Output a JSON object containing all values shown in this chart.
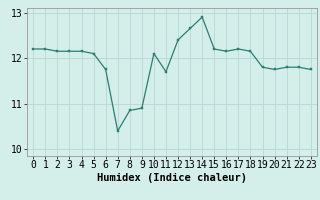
{
  "x": [
    0,
    1,
    2,
    3,
    4,
    5,
    6,
    7,
    8,
    9,
    10,
    11,
    12,
    13,
    14,
    15,
    16,
    17,
    18,
    19,
    20,
    21,
    22,
    23
  ],
  "y": [
    12.2,
    12.2,
    12.15,
    12.15,
    12.15,
    12.1,
    11.75,
    10.4,
    10.85,
    10.9,
    12.1,
    11.7,
    12.4,
    12.65,
    12.9,
    12.2,
    12.15,
    12.2,
    12.15,
    11.8,
    11.75,
    11.8,
    11.8,
    11.75
  ],
  "line_color": "#2a7f6f",
  "marker_color": "#2a7f6f",
  "bg_color": "#d4eeea",
  "grid_color": "#b8d8d4",
  "xlabel": "Humidex (Indice chaleur)",
  "ylim": [
    9.85,
    13.1
  ],
  "xlim": [
    -0.5,
    23.5
  ],
  "yticks": [
    10,
    11,
    12,
    13
  ],
  "xticks": [
    0,
    1,
    2,
    3,
    4,
    5,
    6,
    7,
    8,
    9,
    10,
    11,
    12,
    13,
    14,
    15,
    16,
    17,
    18,
    19,
    20,
    21,
    22,
    23
  ],
  "xtick_labels": [
    "0",
    "1",
    "2",
    "3",
    "4",
    "5",
    "6",
    "7",
    "8",
    "9",
    "10",
    "11",
    "12",
    "13",
    "14",
    "15",
    "16",
    "17",
    "18",
    "19",
    "20",
    "21",
    "22",
    "23"
  ],
  "xlabel_fontsize": 7.5,
  "tick_fontsize": 7.0
}
